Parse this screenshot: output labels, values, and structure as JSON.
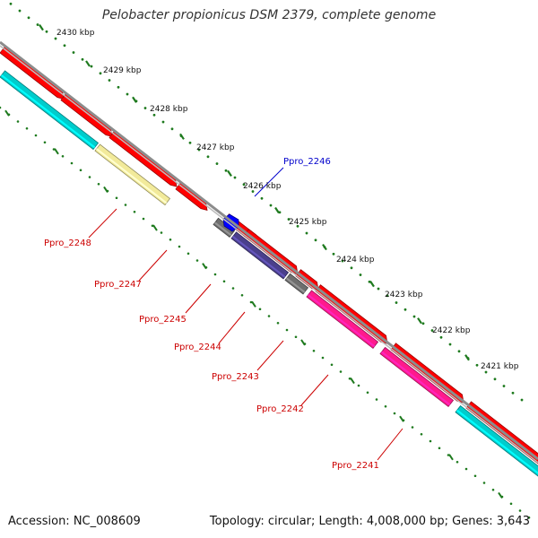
{
  "title": "Pelobacter propionicus DSM 2379, complete genome",
  "footer": {
    "accession": "Accession: NC_008609",
    "summary": "Topology: circular; Length: 4,008,000 bp; Genes: 3,643"
  },
  "colors": {
    "backbone": "#8c8c8c",
    "tick_dots": "#1e7a1e",
    "cds": "#ff0000",
    "rna": "#00cccc",
    "pale": "#f2ea9a",
    "grey": "#6e6e6e",
    "purple": "#4a3f8c",
    "magenta": "#ff1a8c",
    "blue": "#0000ff",
    "label_red": "#cc0000",
    "label_blue": "#0000cc"
  },
  "ticks": [
    {
      "label": "2430 kbp"
    },
    {
      "label": "2429 kbp"
    },
    {
      "label": "2428 kbp"
    },
    {
      "label": "2427 kbp"
    },
    {
      "label": "2426 kbp"
    },
    {
      "label": "2425 kbp"
    },
    {
      "label": "2424 kbp"
    },
    {
      "label": "2423 kbp"
    },
    {
      "label": "2422 kbp"
    },
    {
      "label": "2421 kbp"
    }
  ],
  "gene_labels": [
    {
      "text": "Ppro_2246",
      "color": "#0000cc"
    },
    {
      "text": "Ppro_2248",
      "color": "#cc0000"
    },
    {
      "text": "Ppro_2247",
      "color": "#cc0000"
    },
    {
      "text": "Ppro_2245",
      "color": "#cc0000"
    },
    {
      "text": "Ppro_2244",
      "color": "#cc0000"
    },
    {
      "text": "Ppro_2243",
      "color": "#cc0000"
    },
    {
      "text": "Ppro_2242",
      "color": "#cc0000"
    },
    {
      "text": "Ppro_2241",
      "color": "#cc0000"
    }
  ]
}
